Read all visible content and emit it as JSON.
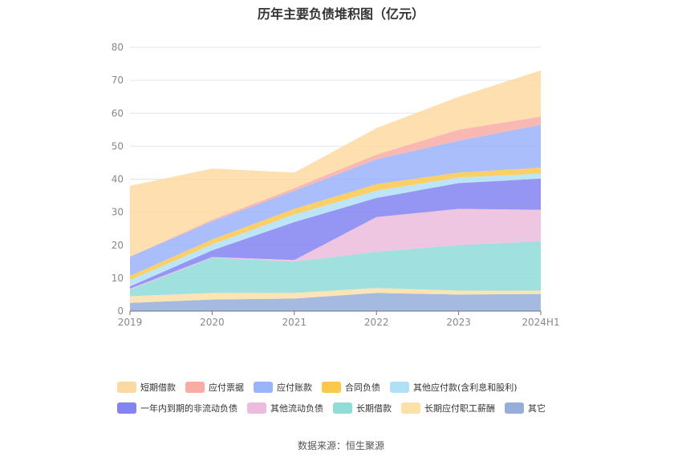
{
  "chart_data": {
    "type": "area",
    "title": "历年主要负债堆积图（亿元）",
    "source": "数据来源：恒生聚源",
    "categories": [
      "2019",
      "2020",
      "2021",
      "2022",
      "2023",
      "2024H1"
    ],
    "ylim": [
      0,
      80
    ],
    "yticks": [
      "0",
      "10",
      "20",
      "30",
      "40",
      "50",
      "60",
      "70",
      "80"
    ],
    "grid": true,
    "legend_position": "bottom",
    "stacked": true,
    "series": [
      {
        "name": "其它",
        "color": "#95aedb",
        "values": [
          2.5,
          3.5,
          3.8,
          5.5,
          5.0,
          5.2
        ]
      },
      {
        "name": "长期应付职工薪酬",
        "color": "#fddfa8",
        "values": [
          2.0,
          2.0,
          1.7,
          1.5,
          1.2,
          1.0
        ]
      },
      {
        "name": "长期借款",
        "color": "#8fdcd9",
        "values": [
          2.0,
          10.7,
          9.5,
          11.0,
          13.8,
          15.0
        ]
      },
      {
        "name": "其他流动负债",
        "color": "#ecbcdc",
        "values": [
          0.3,
          0.2,
          0.5,
          10.5,
          11.0,
          9.5
        ]
      },
      {
        "name": "一年内到期的非流动负债",
        "color": "#8383f2",
        "values": [
          0.7,
          2.0,
          11.5,
          5.8,
          7.8,
          9.5
        ]
      },
      {
        "name": "其他应付款(含利息和股利)",
        "color": "#b0e0f7",
        "values": [
          1.9,
          1.8,
          2.3,
          2.2,
          1.7,
          1.5
        ]
      },
      {
        "name": "合同负债",
        "color": "#fcc84c",
        "values": [
          1.3,
          1.5,
          1.7,
          2.0,
          1.5,
          1.8
        ]
      },
      {
        "name": "应付账款",
        "color": "#9ab3f9",
        "values": [
          5.8,
          5.5,
          5.5,
          7.5,
          9.7,
          13.0
        ]
      },
      {
        "name": "应付票据",
        "color": "#f9aca4",
        "values": [
          0,
          0.5,
          0.8,
          1.5,
          3.3,
          2.5
        ]
      },
      {
        "name": "短期借款",
        "color": "#fdd9a2",
        "values": [
          21.5,
          15.5,
          4.7,
          8.0,
          10.0,
          14.0
        ]
      }
    ],
    "legend_rows": [
      [
        "短期借款",
        "应付票据",
        "应付账款",
        "合同负债",
        "其他应付款(含利息和股利)"
      ],
      [
        "一年内到期的非流动负债",
        "其他流动负债",
        "长期借款",
        "长期应付职工薪酬",
        "其它"
      ]
    ]
  }
}
